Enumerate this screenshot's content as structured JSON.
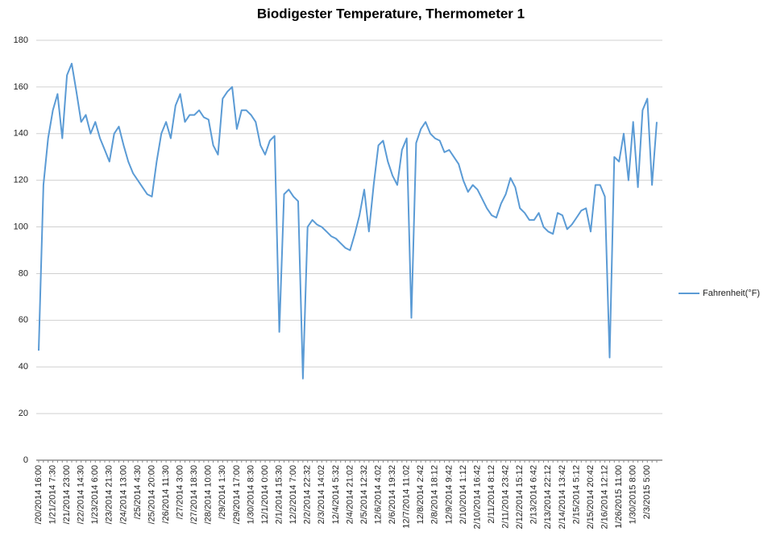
{
  "chart_data": {
    "type": "line",
    "title": "Biodigester Temperature, Thermometer 1",
    "categories": [
      "/20/2014 16:00",
      null,
      null,
      "1/21/2014 7:30",
      null,
      null,
      "/21/2014 23:00",
      null,
      null,
      "/22/2014 14:30",
      null,
      null,
      "1/23/2014 6:00",
      null,
      null,
      "/23/2014 21:30",
      null,
      null,
      "/24/2014 13:00",
      null,
      null,
      "/25/2014 4:30",
      null,
      null,
      "/25/2014 20:00",
      null,
      null,
      "/26/2014 11:30",
      null,
      null,
      "/27/2014 3:00",
      null,
      null,
      "/27/2014 18:30",
      null,
      null,
      "/28/2014 10:00",
      null,
      null,
      "/29/2014 1:30",
      null,
      null,
      "/29/2014 17:00",
      null,
      null,
      "1/30/2014 8:30",
      null,
      null,
      "12/1/2014 0:00",
      null,
      null,
      "2/1/2014 15:30",
      null,
      null,
      "12/2/2014 7:00",
      null,
      null,
      "2/2/2014 22:32",
      null,
      null,
      "2/3/2014 14:02",
      null,
      null,
      "12/4/2014 5:32",
      null,
      null,
      "2/4/2014 21:02",
      null,
      null,
      "2/5/2014 12:32",
      null,
      null,
      "12/6/2014 4:02",
      null,
      null,
      "2/6/2014 19:32",
      null,
      null,
      "12/7/2014 11:02",
      null,
      null,
      "12/8/2014 2:42",
      null,
      null,
      "2/8/2014 18:12",
      null,
      null,
      "12/9/2014 9:42",
      null,
      null,
      "2/10/2014 1:12",
      null,
      null,
      "2/10/2014 16:42",
      null,
      null,
      "2/11/2014 8:12",
      null,
      null,
      "2/11/2014 23:42",
      null,
      null,
      "2/12/2014 15:12",
      null,
      null,
      "2/13/2014 6:42",
      null,
      null,
      "2/13/2014 22:12",
      null,
      null,
      "2/14/2014 13:42",
      null,
      null,
      "2/15/2014 5:12",
      null,
      null,
      "2/15/2014 20:42",
      null,
      null,
      "2/16/2014 12:12",
      null,
      null,
      "1/26/2015 11:00",
      null,
      null,
      "1/30/2015 8:00",
      null,
      null,
      "2/3/2015 5:00",
      null,
      null
    ],
    "series": [
      {
        "name": "Fahrenheit(°F)",
        "color": "#5b9bd5",
        "values": [
          47,
          118,
          138,
          150,
          157,
          138,
          165,
          170,
          158,
          145,
          148,
          140,
          145,
          138,
          133,
          128,
          140,
          143,
          135,
          128,
          123,
          120,
          117,
          114,
          113,
          128,
          140,
          145,
          138,
          152,
          157,
          145,
          148,
          148,
          150,
          147,
          146,
          135,
          131,
          155,
          158,
          160,
          142,
          150,
          150,
          148,
          145,
          135,
          131,
          137,
          139,
          55,
          114,
          116,
          113,
          111,
          35,
          100,
          103,
          101,
          100,
          98,
          96,
          95,
          93,
          91,
          90,
          97,
          105,
          116,
          98,
          118,
          135,
          137,
          128,
          122,
          118,
          133,
          138,
          61,
          136,
          142,
          145,
          140,
          138,
          137,
          132,
          133,
          130,
          127,
          120,
          115,
          118,
          116,
          112,
          108,
          105,
          104,
          110,
          114,
          121,
          117,
          108,
          106,
          103,
          103,
          106,
          100,
          98,
          97,
          106,
          105,
          99,
          101,
          104,
          107,
          108,
          98,
          118,
          118,
          113,
          44,
          130,
          128,
          140,
          120,
          145,
          117,
          150,
          155,
          118,
          145
        ]
      }
    ],
    "ylim": [
      0,
      180
    ],
    "yticks": [
      0,
      20,
      40,
      60,
      80,
      100,
      120,
      140,
      160,
      180
    ],
    "grid": true,
    "legend": "right"
  }
}
